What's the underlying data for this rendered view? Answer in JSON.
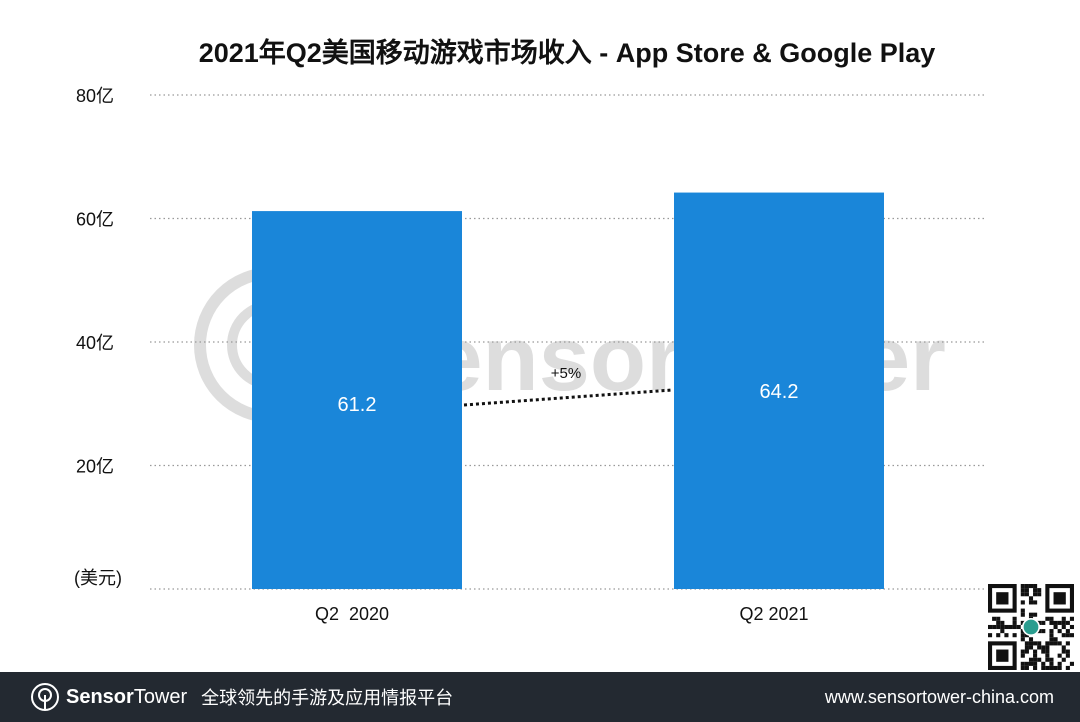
{
  "chart_data": {
    "type": "bar",
    "title": "2021年Q2美国移动游戏市场收入 - App Store & Google Play",
    "categories": [
      "Q2  2020",
      "Q2 2021"
    ],
    "values": [
      61.2,
      64.2
    ],
    "value_labels": [
      "61.2",
      "64.2"
    ],
    "ylabel": "(美元)",
    "ylim": [
      0,
      80
    ],
    "yticks": [
      {
        "value": 20,
        "label": "20亿"
      },
      {
        "value": 40,
        "label": "40亿"
      },
      {
        "value": 60,
        "label": "60亿"
      },
      {
        "value": 80,
        "label": "80亿"
      }
    ],
    "grid": true,
    "annotation": "+5%",
    "bar_color": "#1a86d9"
  },
  "watermark": "SensorTower",
  "footer": {
    "brand_bold": "Sensor",
    "brand_light": "Tower",
    "slogan": "全球领先的手游及应用情报平台",
    "url": "www.sensortower-china.com"
  }
}
